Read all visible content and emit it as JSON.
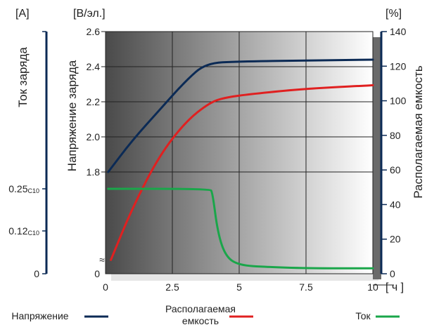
{
  "chart_data": {
    "type": "line",
    "xlabel": "[ ч ]",
    "x_ticks": [
      "0",
      "2.5",
      "5",
      "7.5",
      "10"
    ],
    "xlim": [
      0,
      10
    ],
    "grid": true,
    "legend_position": "bottom",
    "axes": {
      "current": {
        "unit": "[A]",
        "title": "Ток заряда",
        "ticks": [
          "0.25C10",
          "0.12C10",
          "0"
        ]
      },
      "voltage": {
        "unit": "[В/эл.]",
        "title": "Напряжение заряда",
        "ticks": [
          "2.6",
          "2.4",
          "2.2",
          "2.0",
          "1.8",
          "0"
        ],
        "ylim": [
          1.8,
          2.6
        ]
      },
      "capacity": {
        "unit": "[%]",
        "title": "Располагаемая емкость",
        "ticks": [
          "140",
          "120",
          "100",
          "80",
          "60",
          "40",
          "20",
          "0"
        ],
        "ylim": [
          0,
          140
        ]
      }
    },
    "series": [
      {
        "name": "Напряжение",
        "axis": "voltage",
        "color": "#0b2a55",
        "points": [
          [
            0.1,
            1.8
          ],
          [
            1.0,
            1.98
          ],
          [
            2.0,
            2.15
          ],
          [
            3.0,
            2.32
          ],
          [
            3.75,
            2.42
          ],
          [
            5.0,
            2.43
          ],
          [
            7.5,
            2.435
          ],
          [
            10.0,
            2.44
          ]
        ]
      },
      {
        "name": "Располагаемая емкость",
        "axis": "capacity",
        "color": "#e02020",
        "points": [
          [
            0.2,
            8
          ],
          [
            1.0,
            38
          ],
          [
            2.0,
            68
          ],
          [
            3.0,
            88
          ],
          [
            3.9,
            99
          ],
          [
            4.5,
            102
          ],
          [
            5.5,
            104
          ],
          [
            7.5,
            107
          ],
          [
            10.0,
            109
          ]
        ]
      },
      {
        "name": "Ток",
        "axis": "current",
        "color": "#1aa64a",
        "points": [
          [
            0.1,
            0.25
          ],
          [
            3.9,
            0.25
          ],
          [
            4.0,
            0.24
          ],
          [
            4.2,
            0.12
          ],
          [
            4.5,
            0.05
          ],
          [
            5.0,
            0.025
          ],
          [
            6.0,
            0.02
          ],
          [
            7.5,
            0.016
          ],
          [
            10.0,
            0.016
          ]
        ]
      }
    ]
  },
  "legend": {
    "voltage": "Напряжение",
    "capacity": "Располагаемая\nемкость",
    "current": "Ток"
  },
  "colors": {
    "voltage_axis": "#0b2a55",
    "grid": "#222222",
    "gradient_dark": "#4a4a4a",
    "gradient_light": "#ffffff"
  }
}
